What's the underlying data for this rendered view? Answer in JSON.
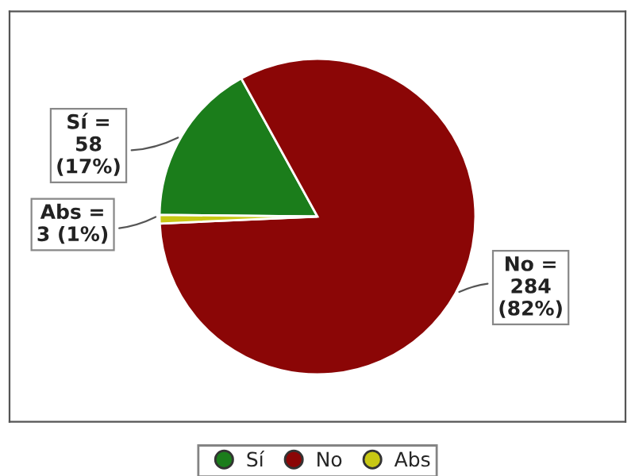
{
  "chart_data": {
    "type": "pie",
    "categories": [
      "Sí",
      "No",
      "Abs"
    ],
    "values": [
      58,
      284,
      3
    ],
    "colors": [
      "#1b7d1b",
      "#8b0606",
      "#c8c814"
    ],
    "value_labels": [
      "Sí =\n58\n(17%)",
      "No =\n284\n(82%)",
      "Abs =\n3 (1%)"
    ],
    "legend": "bottom"
  }
}
